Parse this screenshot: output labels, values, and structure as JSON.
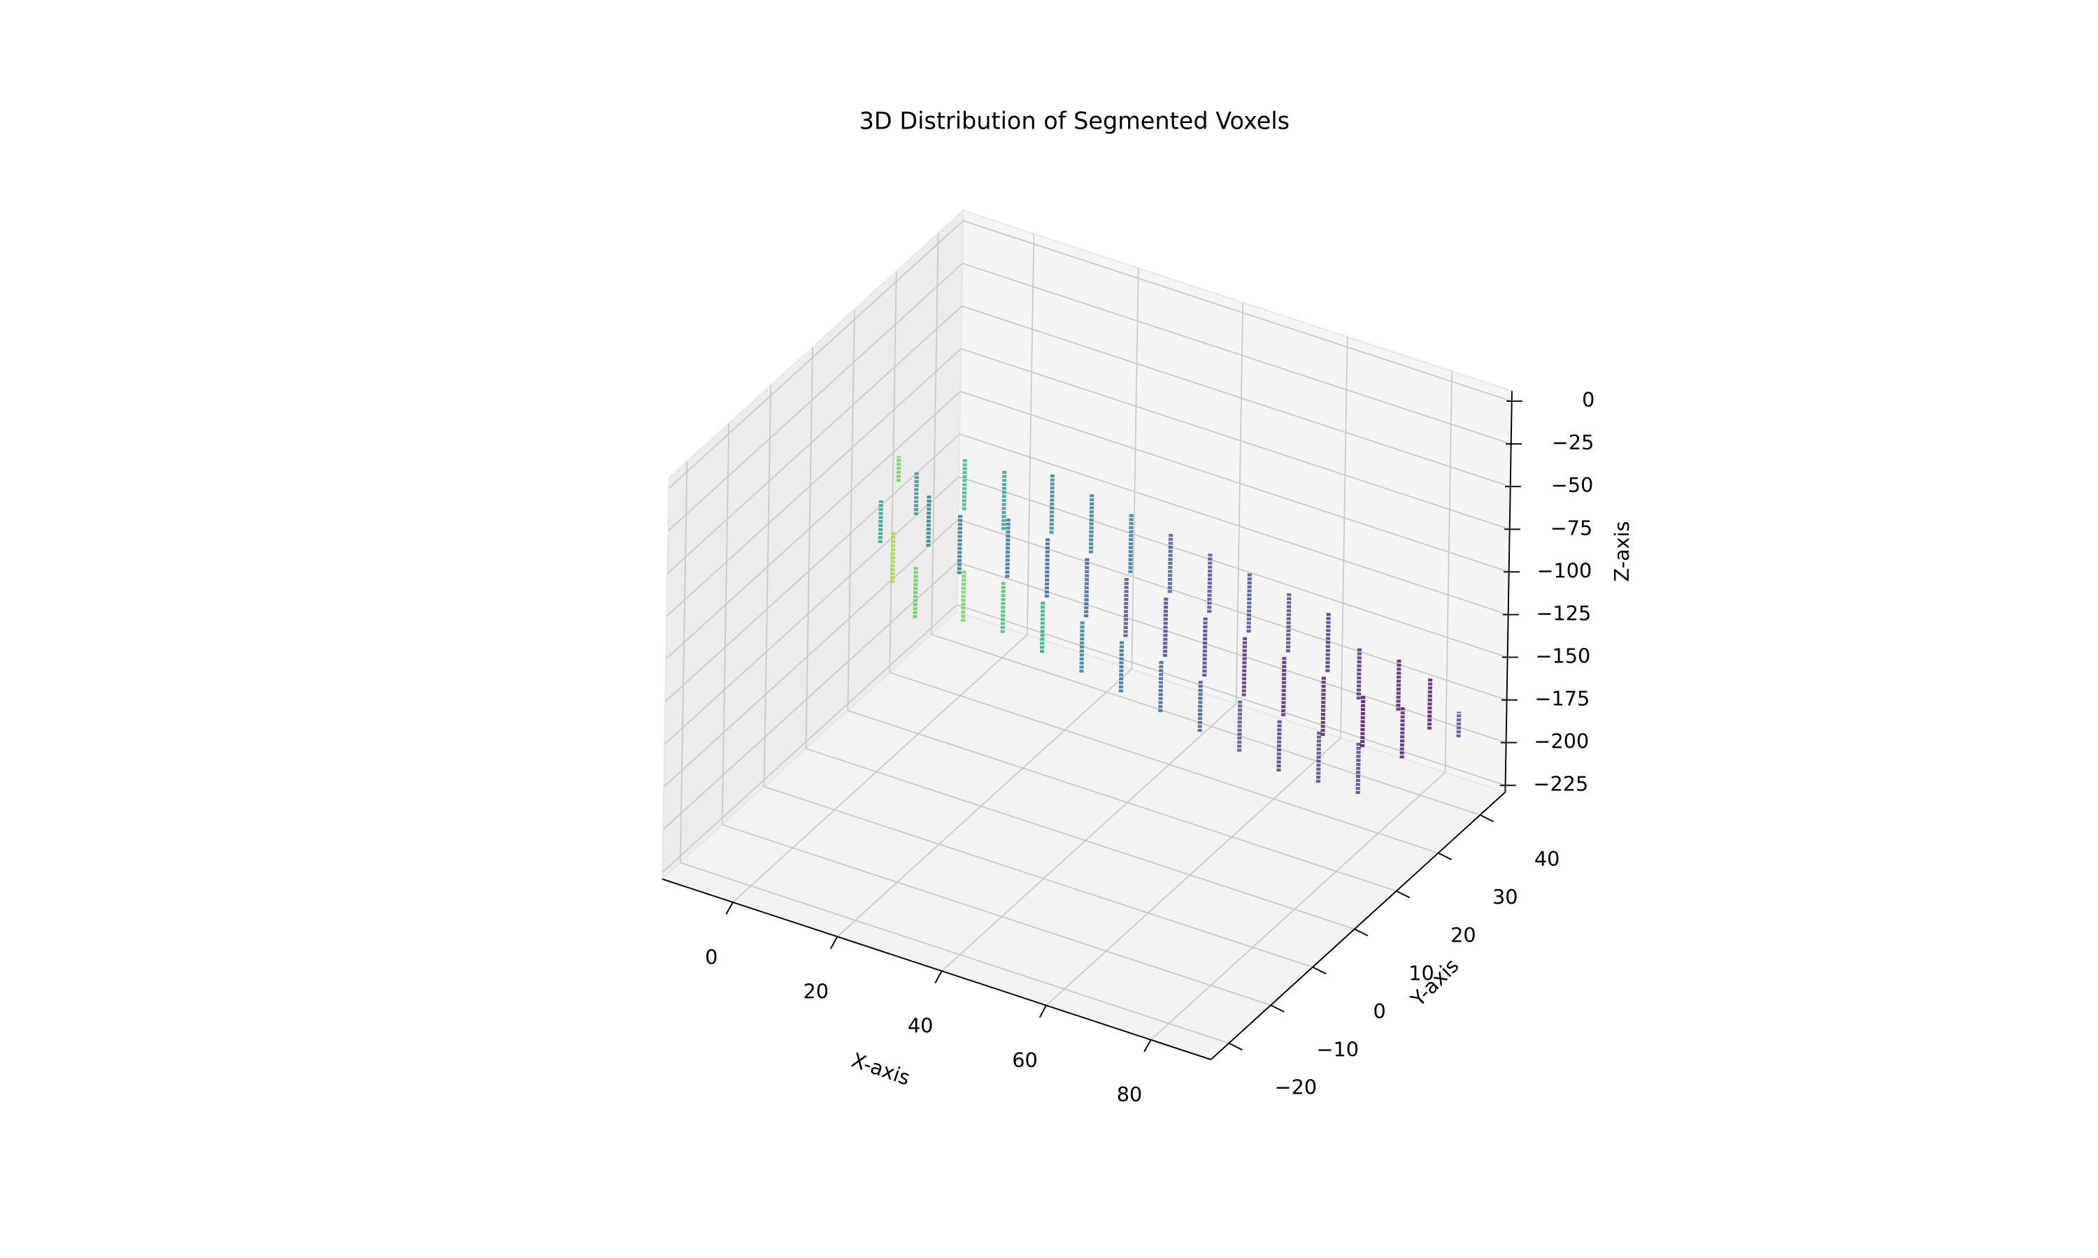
{
  "chart_data": {
    "type": "scatter3d",
    "title": "3D Distribution of Segmented Voxels",
    "xlabel": "X-axis",
    "ylabel": "Y-axis",
    "zlabel": "Z-axis",
    "x": [
      -3,
      0,
      2,
      4,
      6,
      8,
      10,
      12,
      14,
      16,
      18,
      20,
      22,
      24,
      26,
      28,
      30,
      32,
      34,
      36,
      38,
      40,
      42,
      44,
      46,
      48,
      50,
      52,
      54,
      56,
      58,
      60,
      62,
      64,
      66,
      68,
      70,
      72,
      74,
      76,
      78,
      80,
      84
    ],
    "y": [
      18,
      10,
      16,
      8,
      14,
      20,
      6,
      14,
      22,
      10,
      18,
      26,
      12,
      20,
      28,
      14,
      22,
      30,
      16,
      24,
      32,
      18,
      26,
      34,
      20,
      28,
      36,
      22,
      30,
      38,
      24,
      32,
      40,
      26,
      34,
      40,
      28,
      36,
      42,
      30,
      38,
      42,
      44
    ],
    "z_low": [
      -80,
      -95,
      -90,
      -110,
      -100,
      -90,
      -120,
      -110,
      -100,
      -125,
      -115,
      -105,
      -130,
      -125,
      -115,
      -140,
      -135,
      -125,
      -150,
      -145,
      -135,
      -160,
      -155,
      -145,
      -170,
      -165,
      -155,
      -180,
      -175,
      -165,
      -190,
      -185,
      -175,
      -200,
      -195,
      -185,
      -205,
      -200,
      -190,
      -210,
      -205,
      -195,
      -200
    ],
    "z_high": [
      -65,
      -70,
      -65,
      -80,
      -70,
      -60,
      -90,
      -75,
      -65,
      -95,
      -80,
      -70,
      -100,
      -90,
      -80,
      -110,
      -100,
      -90,
      -120,
      -110,
      -100,
      -130,
      -120,
      -110,
      -140,
      -130,
      -120,
      -150,
      -140,
      -130,
      -160,
      -150,
      -140,
      -170,
      -160,
      -155,
      -175,
      -170,
      -160,
      -180,
      -175,
      -165,
      -185
    ],
    "colors": [
      "#6ccd5a",
      "#2a9d8a",
      "#3b8b8c",
      "#a5db36",
      "#29798e",
      "#35b779",
      "#5ec962",
      "#2c728e",
      "#1f9e89",
      "#6ccd5a",
      "#31688e",
      "#26828e",
      "#3fbc73",
      "#355f8d",
      "#2c728e",
      "#22a884",
      "#39568c",
      "#2d708e",
      "#2a788e",
      "#414487",
      "#3b528b",
      "#31688e",
      "#443983",
      "#3e4989",
      "#355f8d",
      "#46327e",
      "#404688",
      "#3b528b",
      "#482374",
      "#433e85",
      "#414487",
      "#481a6c",
      "#472d7b",
      "#46327e",
      "#471063",
      "#482475",
      "#443983",
      "#440154",
      "#481668",
      "#46327e",
      "#481769",
      "#470e61",
      "#3e4989"
    ],
    "xlim": [
      -13.5,
      91.5
    ],
    "ylim": [
      -24.3,
      46
    ],
    "zlim": [
      -229,
      6
    ],
    "xticks": [
      0,
      20,
      40,
      60,
      80
    ],
    "yticks": [
      {
        "value": -20,
        "label": "−20"
      },
      {
        "value": -10,
        "label": "−10"
      },
      0,
      10,
      20,
      30,
      40
    ],
    "zticks": [
      {
        "value": -225,
        "label": "−225"
      },
      {
        "value": -200,
        "label": "−200"
      },
      {
        "value": -175,
        "label": "−175"
      },
      {
        "value": -150,
        "label": "−150"
      },
      {
        "value": -125,
        "label": "−125"
      },
      {
        "value": -100,
        "label": "−100"
      },
      {
        "value": -75,
        "label": "−75"
      },
      {
        "value": -50,
        "label": "−50"
      },
      {
        "value": -25,
        "label": "−25"
      },
      0
    ],
    "grid": true
  }
}
